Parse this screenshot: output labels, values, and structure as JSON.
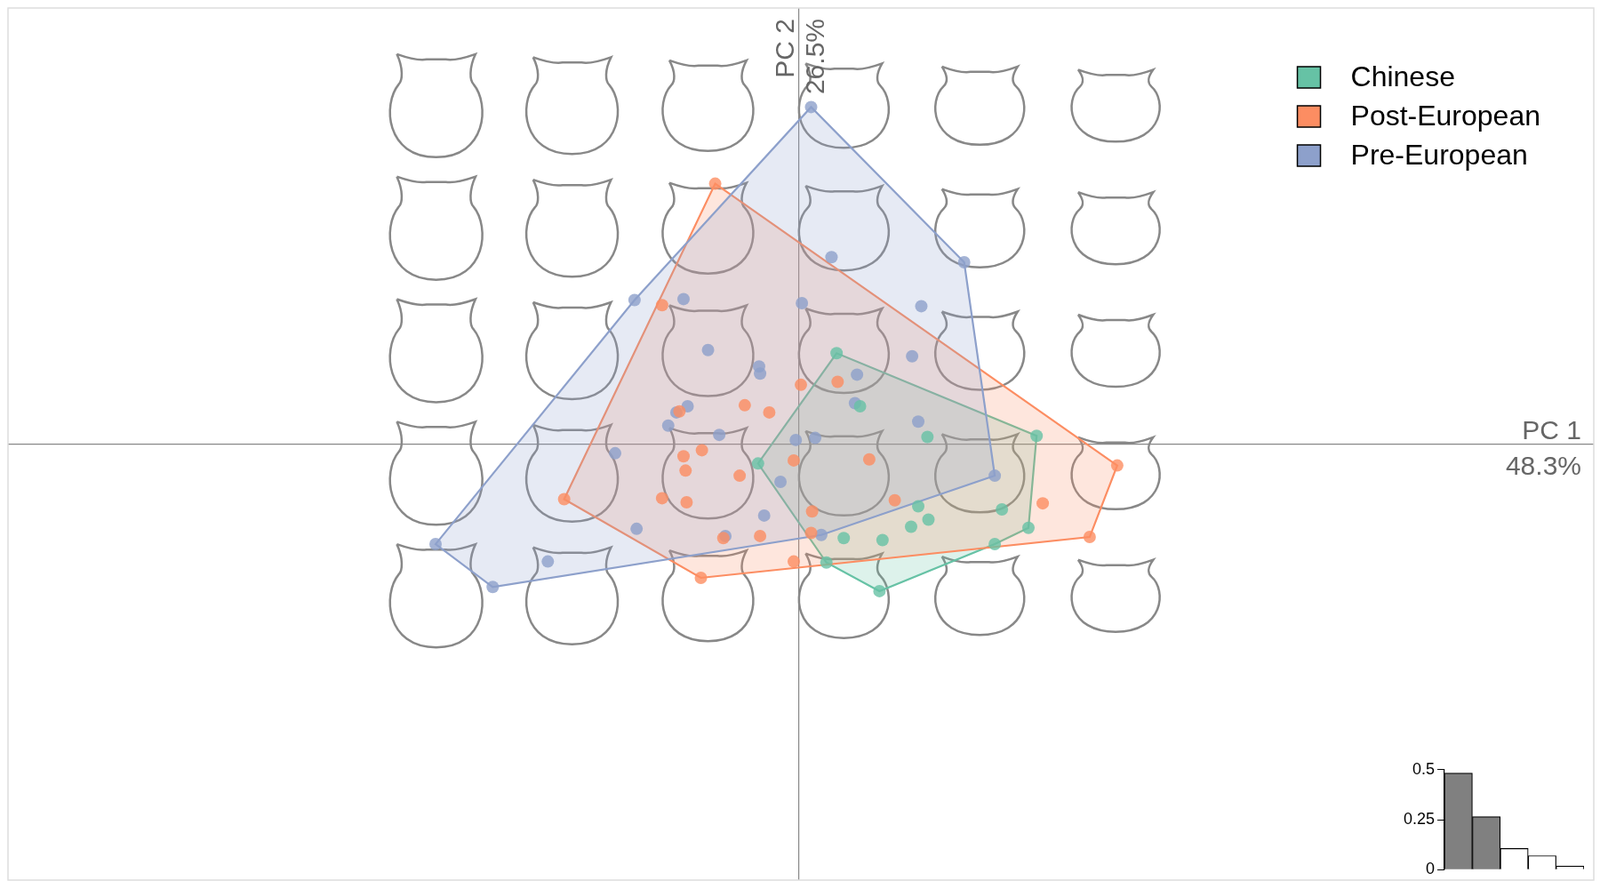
{
  "chart_data": [
    {
      "type": "scatter",
      "xlabel": "PC 1",
      "ylabel": "PC 2",
      "annotations": [
        {
          "axis": "x",
          "text": "48.3%"
        },
        {
          "axis": "y",
          "text": "26.5%"
        }
      ],
      "xlim": [
        -0.775,
        0.779
      ],
      "ylim": [
        -0.427,
        0.427
      ],
      "xticks": [
        0
      ],
      "yticks": [
        0
      ],
      "grid": true,
      "tick_labels": false,
      "legend": "top right",
      "marker": "circle",
      "series": [
        {
          "name": "Chinese",
          "color": "#66c2a5",
          "x": [
            0.037,
            0.06,
            0.126,
            0.233,
            -0.04,
            0.117,
            0.127,
            0.199,
            0.225,
            0.192,
            0.11,
            0.082,
            0.044,
            0.027,
            0.079
          ],
          "y": [
            0.089,
            0.037,
            0.007,
            0.008,
            -0.019,
            -0.061,
            -0.074,
            -0.064,
            -0.082,
            -0.098,
            -0.081,
            -0.094,
            -0.092,
            -0.116,
            -0.144
          ]
        },
        {
          "name": "Post-European",
          "color": "#fc8d62",
          "x": [
            -0.082,
            -0.134,
            -0.117,
            0.002,
            0.038,
            -0.053,
            -0.029,
            -0.113,
            -0.095,
            -0.111,
            -0.058,
            -0.005,
            0.069,
            -0.134,
            -0.11,
            0.013,
            0.094,
            -0.23,
            -0.074,
            -0.038,
            0.012,
            -0.005,
            -0.096,
            0.239,
            0.285,
            0.312
          ],
          "y": [
            0.255,
            0.136,
            0.032,
            0.058,
            0.061,
            0.038,
            0.031,
            -0.012,
            -0.006,
            -0.026,
            -0.031,
            -0.016,
            -0.015,
            -0.053,
            -0.057,
            -0.066,
            -0.055,
            -0.054,
            -0.092,
            -0.09,
            -0.087,
            -0.115,
            -0.131,
            -0.058,
            -0.091,
            -0.021
          ]
        },
        {
          "name": "Pre-European",
          "color": "#8da0cb",
          "x": [
            0.012,
            0.032,
            0.162,
            -0.161,
            -0.113,
            0.003,
            0.12,
            -0.089,
            -0.039,
            -0.038,
            0.111,
            0.057,
            0.055,
            -0.109,
            -0.12,
            -0.128,
            0.117,
            -0.078,
            -0.003,
            0.016,
            -0.18,
            -0.018,
            0.192,
            -0.034,
            -0.159,
            -0.072,
            0.022,
            -0.356,
            -0.246,
            -0.3
          ],
          "y": [
            0.33,
            0.183,
            0.178,
            0.141,
            0.142,
            0.138,
            0.135,
            0.092,
            0.076,
            0.069,
            0.086,
            0.068,
            0.04,
            0.037,
            0.031,
            0.018,
            0.022,
            0.009,
            0.004,
            0.006,
            -0.009,
            -0.037,
            -0.031,
            -0.07,
            -0.083,
            -0.09,
            -0.089,
            -0.098,
            -0.115,
            -0.14
          ]
        }
      ]
    },
    {
      "type": "bar",
      "categories": [
        null,
        null,
        null,
        null,
        null
      ],
      "values": [
        0.483,
        0.265,
        0.106,
        0.07,
        0.018
      ],
      "colors": [
        "#808080",
        "#808080",
        "#ffffff",
        "#ffffff",
        "#ffffff"
      ],
      "ylim": [
        0,
        0.5
      ],
      "yticks": [
        0,
        0.25,
        0.5
      ],
      "grid": false,
      "tick_labels": "y"
    }
  ]
}
